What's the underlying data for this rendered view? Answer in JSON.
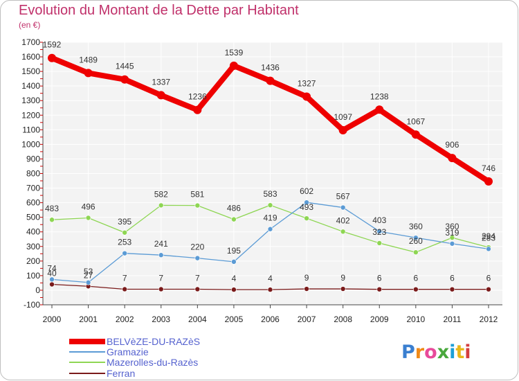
{
  "title": "Evolution du Montant de la Dette par Habitant",
  "subtitle": "(en €)",
  "logo_text": "Proxiti",
  "chart_data": {
    "type": "line",
    "x": [
      "2000",
      "2001",
      "2002",
      "2003",
      "2004",
      "2005",
      "2006",
      "2007",
      "2008",
      "2009",
      "2010",
      "2011",
      "2012"
    ],
    "ylim": [
      -100,
      1700
    ],
    "yticks": [
      -100,
      0,
      100,
      200,
      300,
      400,
      500,
      600,
      700,
      800,
      900,
      1000,
      1100,
      1200,
      1300,
      1400,
      1500,
      1600,
      1700
    ],
    "grid": true,
    "legend_position": "bottom-left",
    "series": [
      {
        "name": "BELVèZE-DU-RAZèS",
        "color": "#ee0000",
        "values": [
          1592,
          1489,
          1445,
          1337,
          1236,
          1539,
          1436,
          1327,
          1097,
          1238,
          1067,
          906,
          746
        ]
      },
      {
        "name": "Gramazie",
        "color": "#5b9bd5",
        "values": [
          74,
          53,
          253,
          241,
          220,
          195,
          419,
          602,
          567,
          403,
          360,
          319,
          283
        ]
      },
      {
        "name": "Mazerolles-du-Razès",
        "color": "#8ed653",
        "values": [
          483,
          496,
          395,
          582,
          581,
          486,
          583,
          493,
          402,
          323,
          260,
          360,
          294
        ]
      },
      {
        "name": "Ferran",
        "color": "#7a1a1a",
        "values": [
          40,
          27,
          7,
          7,
          7,
          4,
          4,
          9,
          9,
          6,
          6,
          6,
          6
        ]
      }
    ]
  }
}
